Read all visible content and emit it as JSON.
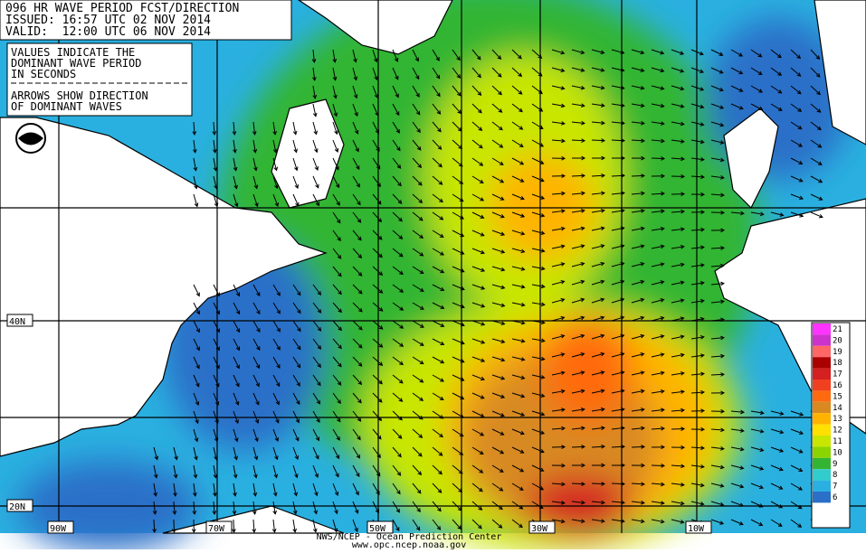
{
  "header": {
    "lines": [
      "096 HR WAVE PERIOD FCST/DIRECTION",
      "ISSUED: 16:57 UTC 02 NOV 2014",
      "VALID:  12:00 UTC 06 NOV 2014"
    ]
  },
  "note": {
    "lines": [
      "VALUES INDICATE THE",
      "DOMINANT WAVE PERIOD",
      "IN SECONDS",
      "ARROWS SHOW DIRECTION",
      "OF DOMINANT WAVES"
    ]
  },
  "legend": {
    "labels": [
      "21",
      "20",
      "19",
      "18",
      "17",
      "16",
      "15",
      "14",
      "13",
      "12",
      "11",
      "10",
      "9",
      "8",
      "7",
      "6"
    ],
    "colors": [
      "#ff33ff",
      "#cc33cc",
      "#ff6666",
      "#aa0000",
      "#d42020",
      "#f04020",
      "#ff6a10",
      "#d88a20",
      "#ffb300",
      "#ffe000",
      "#c8e600",
      "#8cd400",
      "#33b533",
      "#33cccc",
      "#2ab0e0",
      "#2a70c8"
    ]
  },
  "lat_labels": [
    "40N",
    "20N"
  ],
  "lon_labels": [
    "90W",
    "70W",
    "50W",
    "30W",
    "10W"
  ],
  "footer": {
    "lines": [
      "NWS/NCEP - Ocean Prediction Center",
      "www.opc.ncep.noaa.gov"
    ]
  }
}
